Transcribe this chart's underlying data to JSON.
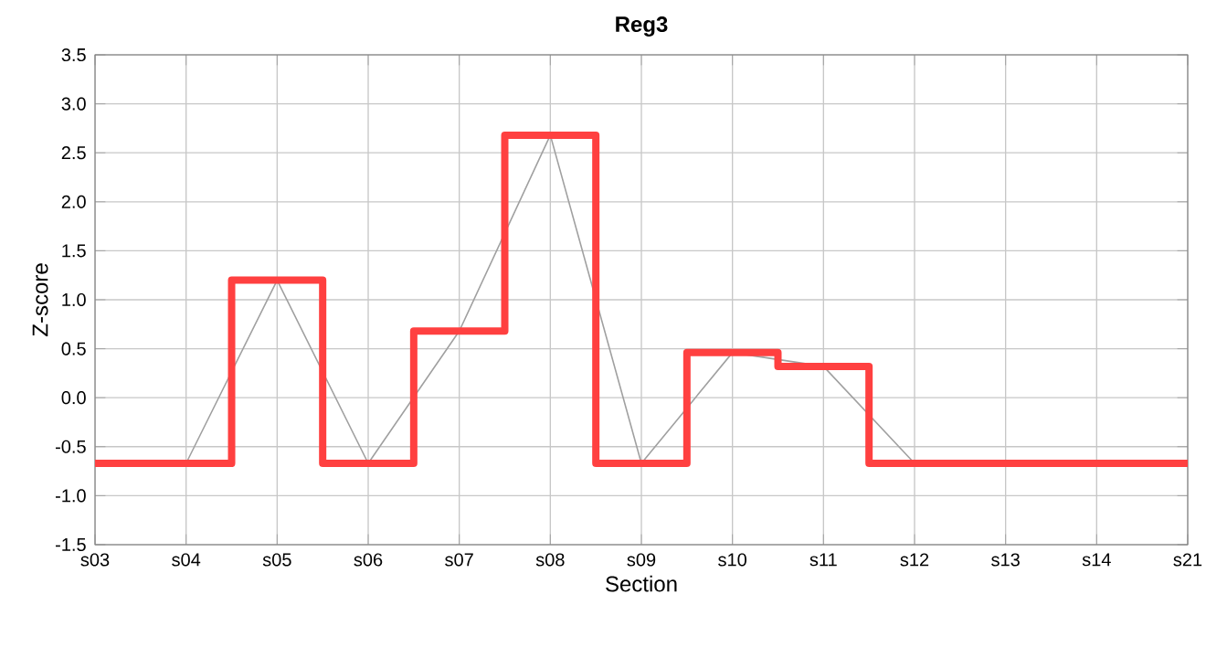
{
  "chart_data": {
    "type": "step",
    "title": "Reg3",
    "xlabel": "Section",
    "ylabel": "Z-score",
    "categories": [
      "s03",
      "s04",
      "s05",
      "s06",
      "s07",
      "s08",
      "s09",
      "s10",
      "s11",
      "s12",
      "s13",
      "s14",
      "s21"
    ],
    "series": [
      {
        "type": "line",
        "color": "#a0a0a0",
        "values": [
          -0.67,
          -0.67,
          1.2,
          -0.67,
          0.68,
          2.68,
          -0.67,
          0.46,
          0.32,
          -0.67,
          -0.67,
          -0.67,
          -0.67
        ]
      },
      {
        "color": "#ff4040",
        "values": [
          -0.67,
          -0.67,
          1.2,
          -0.67,
          0.68,
          2.68,
          -0.67,
          0.46,
          0.32,
          -0.67,
          -0.67,
          -0.67,
          -0.67
        ]
      }
    ],
    "ylim": [
      -1.5,
      3.5
    ],
    "yticks": [
      -1.5,
      {
        "value": -1,
        "label": "-1.0"
      },
      -0.5,
      {
        "value": 0,
        "label": "0.0"
      },
      0.5,
      {
        "value": 1,
        "label": "1.0"
      },
      1.5,
      {
        "value": 2,
        "label": "2.0"
      },
      2.5,
      {
        "value": 3,
        "label": "3.0"
      },
      3.5
    ],
    "grid": true
  }
}
